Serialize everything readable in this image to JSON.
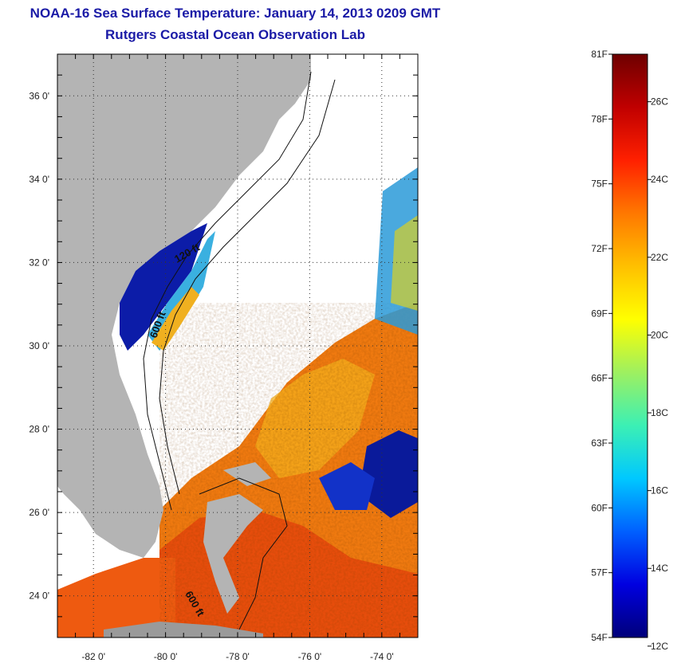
{
  "title": {
    "line1": "NOAA-16 Sea Surface Temperature:  January 14, 2013 0209 GMT",
    "line2": "Rutgers Coastal Ocean Observation Lab"
  },
  "map": {
    "lon_range": [
      -83,
      -73
    ],
    "lat_range": [
      23,
      37
    ],
    "lon_ticks": [
      {
        "value": -82,
        "label": "-82 0'"
      },
      {
        "value": -80,
        "label": "-80 0'"
      },
      {
        "value": -78,
        "label": "-78 0'"
      },
      {
        "value": -76,
        "label": "-76 0'"
      },
      {
        "value": -74,
        "label": "-74 0'"
      }
    ],
    "lat_ticks": [
      {
        "value": 24,
        "label": "24 0'"
      },
      {
        "value": 26,
        "label": "26 0'"
      },
      {
        "value": 28,
        "label": "28 0'"
      },
      {
        "value": 30,
        "label": "30 0'"
      },
      {
        "value": 32,
        "label": "32 0'"
      },
      {
        "value": 34,
        "label": "34 0'"
      },
      {
        "value": 36,
        "label": "36 0'"
      }
    ],
    "contour_labels": [
      "120 ft",
      "600 ft",
      "600 ft"
    ],
    "colors": {
      "land": "#b4b4b4",
      "cloud": "#ffffff",
      "cold": "#0a1a9a",
      "warm": "#f07a10"
    }
  },
  "colorbar": {
    "fahrenheit": [
      {
        "value": 81,
        "label": "81F"
      },
      {
        "value": 78,
        "label": "78F"
      },
      {
        "value": 75,
        "label": "75F"
      },
      {
        "value": 72,
        "label": "72F"
      },
      {
        "value": 69,
        "label": "69F"
      },
      {
        "value": 66,
        "label": "66F"
      },
      {
        "value": 63,
        "label": "63F"
      },
      {
        "value": 60,
        "label": "60F"
      },
      {
        "value": 57,
        "label": "57F"
      },
      {
        "value": 54,
        "label": "54F"
      }
    ],
    "celsius": [
      {
        "value": 26,
        "label": "26C"
      },
      {
        "value": 24,
        "label": "24C"
      },
      {
        "value": 22,
        "label": "22C"
      },
      {
        "value": 20,
        "label": "20C"
      },
      {
        "value": 18,
        "label": "18C"
      },
      {
        "value": 16,
        "label": "16C"
      },
      {
        "value": 14,
        "label": "14C"
      },
      {
        "value": 12,
        "label": "12C"
      }
    ],
    "range_f": [
      54,
      81
    ],
    "stops": [
      "#00007a",
      "#0000e0",
      "#0060ff",
      "#00c8ff",
      "#3cf0b4",
      "#9ef060",
      "#ffff00",
      "#ffc000",
      "#ff7800",
      "#ff2000",
      "#c00000",
      "#6e0000"
    ]
  }
}
